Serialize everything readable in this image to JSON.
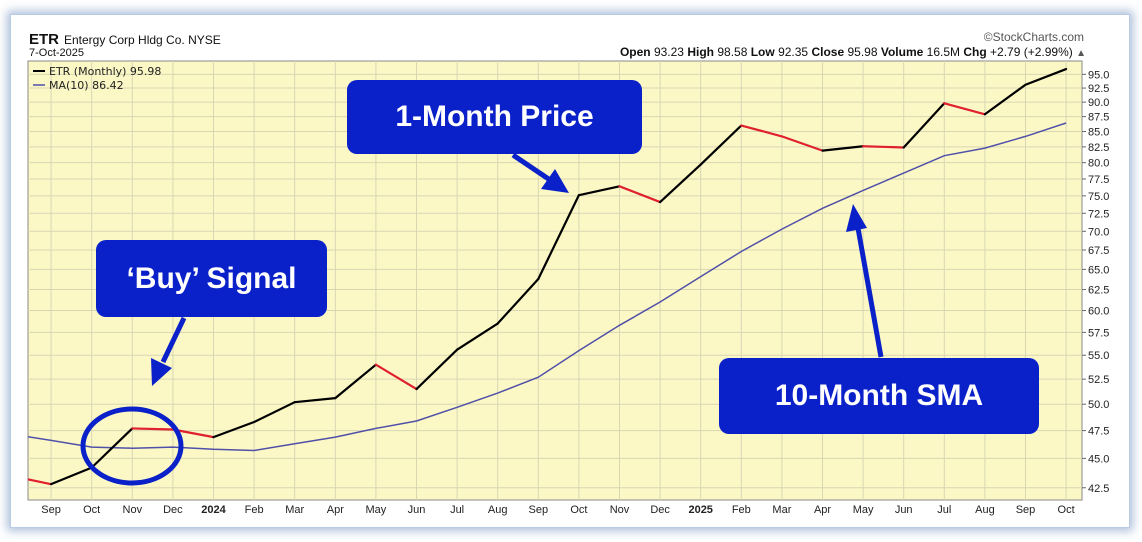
{
  "header": {
    "symbol": "ETR",
    "company": "Entergy Corp Hldg Co.",
    "exchange": "NYSE",
    "date": "7-Oct-2025",
    "brand": "©StockCharts.com",
    "quote": {
      "open_label": "Open",
      "open": "93.23",
      "high_label": "High",
      "high": "98.58",
      "low_label": "Low",
      "low": "92.35",
      "close_label": "Close",
      "close": "95.98",
      "volume_label": "Volume",
      "volume": "16.5M",
      "chg_label": "Chg",
      "chg": "+2.79 (+2.99%)",
      "chg_arrow": "▲"
    }
  },
  "legend": {
    "price": "ETR (Monthly) 95.98",
    "ma": "MA(10) 86.42"
  },
  "callouts": {
    "price": "1-Month Price",
    "buy": "‘Buy’ Signal",
    "sma": "10-Month SMA"
  },
  "colors": {
    "plot_bg": "#fbf8c6",
    "grid": "#d9d6b4",
    "price_up": "#000000",
    "price_down": "#e0202e",
    "ma_line": "#5050a8",
    "callout": "#0a21c9"
  },
  "chart_data": {
    "type": "line",
    "x": [
      "Aug",
      "Sep",
      "Oct",
      "Nov",
      "Dec",
      "2024",
      "Feb",
      "Mar",
      "Apr",
      "May",
      "Jun",
      "Jul",
      "Aug",
      "Sep",
      "Oct",
      "Nov",
      "Dec",
      "2025",
      "Feb",
      "Mar",
      "Apr",
      "May",
      "Jun",
      "Jul",
      "Aug",
      "Sep",
      "Oct"
    ],
    "series": [
      {
        "name": "ETR (Monthly) 95.98",
        "values": [
          43.5,
          42.8,
          44.2,
          47.7,
          47.6,
          46.9,
          48.3,
          50.2,
          50.6,
          54.0,
          51.5,
          55.6,
          58.5,
          63.8,
          75.1,
          76.4,
          74.1,
          79.7,
          86.0,
          84.2,
          81.9,
          82.6,
          82.4,
          89.8,
          87.9,
          93.1,
          95.98
        ]
      },
      {
        "name": "MA(10) 86.42",
        "values": [
          47.2,
          46.6,
          46.0,
          45.9,
          46.0,
          45.8,
          45.7,
          46.3,
          46.9,
          47.7,
          48.4,
          49.7,
          51.1,
          52.7,
          55.5,
          58.3,
          61.0,
          64.1,
          67.3,
          70.3,
          73.2,
          75.8,
          78.4,
          81.1,
          82.3,
          84.2,
          86.42
        ]
      }
    ],
    "x_tick_labels": [
      "Sep",
      "Oct",
      "Nov",
      "Dec",
      "2024",
      "Feb",
      "Mar",
      "Apr",
      "May",
      "Jun",
      "Jul",
      "Aug",
      "Sep",
      "Oct",
      "Nov",
      "Dec",
      "2025",
      "Feb",
      "Mar",
      "Apr",
      "May",
      "Jun",
      "Jul",
      "Aug",
      "Sep",
      "Oct"
    ],
    "y_ticks": [
      42.5,
      45.0,
      47.5,
      50.0,
      52.5,
      55.0,
      57.5,
      60.0,
      62.5,
      65.0,
      67.5,
      70.0,
      72.5,
      75.0,
      77.5,
      80.0,
      82.5,
      85.0,
      87.5,
      90.0,
      92.5,
      95.0
    ],
    "y_tick_labels": [
      "42.5",
      "45.0",
      "47.5",
      "50.0",
      "52.5",
      "55.0",
      "57.5",
      "60.0",
      "62.5",
      "65.0",
      "67.5",
      "70.0",
      "72.5",
      "75.0",
      "77.5",
      "80.0",
      "82.5",
      "85.0",
      "87.5",
      "90.0",
      "92.5",
      "95.0"
    ],
    "ylim": [
      41.5,
      97.5
    ],
    "y_scale": "log",
    "grid": true,
    "legend_position": "top-left",
    "bold_ticks": [
      "2024",
      "2025"
    ]
  }
}
